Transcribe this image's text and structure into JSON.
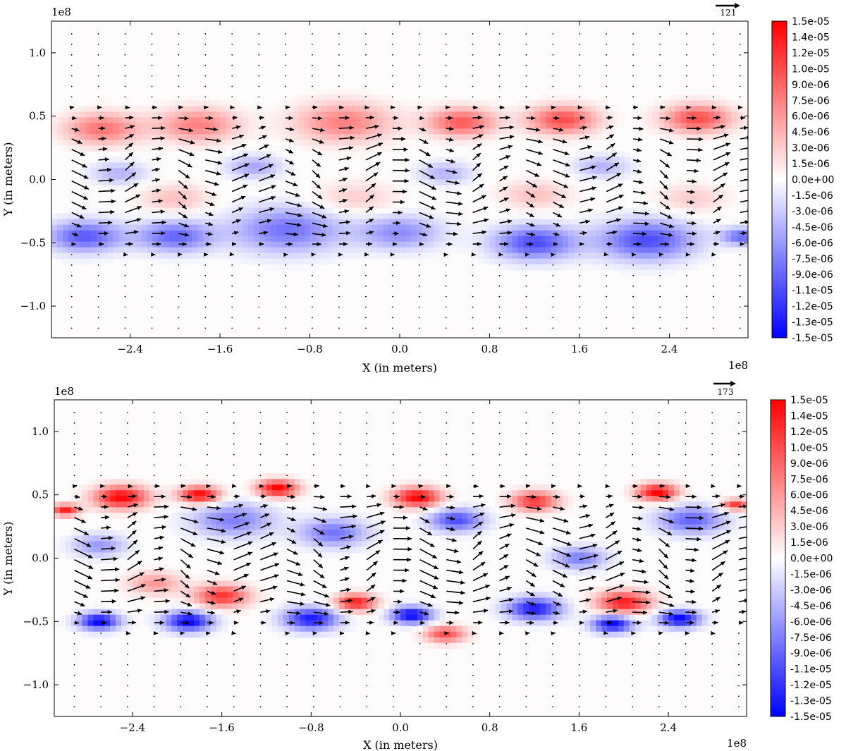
{
  "chart_data": [
    {
      "type": "heatmap",
      "title": "",
      "xlabel": "X (in meters)",
      "ylabel": "Y (in meters)",
      "x_offset_label": "1e8",
      "y_offset_label": "1e8",
      "xlim": [
        -3.1,
        3.1
      ],
      "ylim": [
        -1.25,
        1.25
      ],
      "xticks": [
        -2.4,
        -1.6,
        -0.8,
        0.0,
        0.8,
        1.6,
        2.4
      ],
      "xtick_labels": [
        "−2.4",
        "−1.6",
        "−0.8",
        "0.0",
        "0.8",
        "1.6",
        "2.4"
      ],
      "yticks": [
        1.0,
        0.5,
        0.0,
        -0.5,
        -1.0
      ],
      "ytick_labels": [
        "1.0",
        "0.5",
        "0.0",
        "−0.5",
        "−1.0"
      ],
      "quiver_key": "121",
      "colorbar": {
        "vmin": -1.5e-05,
        "vmax": 1.5e-05,
        "labels": [
          "1.5e-05",
          "1.4e-05",
          "1.2e-05",
          "1.0e-05",
          "9.0e-06",
          "7.5e-06",
          "6.0e-06",
          "4.5e-06",
          "3.0e-06",
          "1.5e-06",
          "0.0e+00",
          "-1.5e-06",
          "-3.0e-06",
          "-4.5e-06",
          "-6.0e-06",
          "-7.5e-06",
          "-9.0e-06",
          "-1.1e-05",
          "-1.2e-05",
          "-1.3e-05",
          "-1.5e-05"
        ]
      },
      "blobs": [
        {
          "x": -2.65,
          "y": 0.4,
          "s": 0.55,
          "v": 0.55
        },
        {
          "x": -1.8,
          "y": 0.43,
          "s": 0.6,
          "v": 0.5
        },
        {
          "x": -0.5,
          "y": 0.45,
          "s": 0.7,
          "v": 0.5
        },
        {
          "x": 0.55,
          "y": 0.45,
          "s": 0.5,
          "v": 0.65
        },
        {
          "x": 1.45,
          "y": 0.47,
          "s": 0.5,
          "v": 0.7
        },
        {
          "x": 2.65,
          "y": 0.48,
          "s": 0.5,
          "v": 0.7
        },
        {
          "x": -2.8,
          "y": -0.45,
          "s": 0.55,
          "v": -0.65
        },
        {
          "x": -2.0,
          "y": -0.45,
          "s": 0.55,
          "v": -0.6
        },
        {
          "x": -1.0,
          "y": -0.4,
          "s": 0.8,
          "v": -0.55
        },
        {
          "x": 0.0,
          "y": -0.42,
          "s": 0.6,
          "v": -0.45
        },
        {
          "x": 1.2,
          "y": -0.5,
          "s": 0.6,
          "v": -0.7
        },
        {
          "x": 2.2,
          "y": -0.48,
          "s": 0.7,
          "v": -0.7
        },
        {
          "x": 3.05,
          "y": -0.45,
          "s": 0.3,
          "v": -0.6
        },
        {
          "x": -2.5,
          "y": 0.05,
          "s": 0.4,
          "v": -0.3
        },
        {
          "x": -1.3,
          "y": 0.1,
          "s": 0.4,
          "v": -0.35
        },
        {
          "x": 0.4,
          "y": 0.05,
          "s": 0.4,
          "v": -0.3
        },
        {
          "x": 1.8,
          "y": 0.1,
          "s": 0.4,
          "v": -0.3
        },
        {
          "x": -2.0,
          "y": -0.15,
          "s": 0.5,
          "v": 0.25
        },
        {
          "x": -0.4,
          "y": -0.15,
          "s": 0.6,
          "v": 0.2
        },
        {
          "x": 1.2,
          "y": -0.12,
          "s": 0.5,
          "v": 0.25
        },
        {
          "x": 2.6,
          "y": -0.15,
          "s": 0.5,
          "v": 0.2
        }
      ]
    },
    {
      "type": "heatmap",
      "title": "",
      "xlabel": "X (in meters)",
      "ylabel": "Y (in meters)",
      "x_offset_label": "1e8",
      "y_offset_label": "1e8",
      "xlim": [
        -3.1,
        3.1
      ],
      "ylim": [
        -1.25,
        1.25
      ],
      "xticks": [
        -2.4,
        -1.6,
        -0.8,
        0.0,
        0.8,
        1.6,
        2.4
      ],
      "xtick_labels": [
        "−2.4",
        "−1.6",
        "−0.8",
        "0.0",
        "0.8",
        "1.6",
        "2.4"
      ],
      "yticks": [
        1.0,
        0.5,
        0.0,
        -0.5,
        -1.0
      ],
      "ytick_labels": [
        "1.0",
        "0.5",
        "0.0",
        "−0.5",
        "−1.0"
      ],
      "quiver_key": "173",
      "colorbar": {
        "vmin": -1.5e-05,
        "vmax": 1.5e-05,
        "labels": [
          "1.5e-05",
          "1.4e-05",
          "1.2e-05",
          "1.0e-05",
          "9.0e-06",
          "7.5e-06",
          "6.0e-06",
          "4.5e-06",
          "3.0e-06",
          "1.5e-06",
          "0.0e+00",
          "-1.5e-06",
          "-3.0e-06",
          "-4.5e-06",
          "-6.0e-06",
          "-7.5e-06",
          "-9.0e-06",
          "-1.1e-05",
          "-1.2e-05",
          "-1.3e-05",
          "-1.5e-05"
        ]
      },
      "blobs": [
        {
          "x": -2.5,
          "y": 0.48,
          "s": 0.4,
          "v": 1.0
        },
        {
          "x": -1.8,
          "y": 0.5,
          "s": 0.3,
          "v": 1.0
        },
        {
          "x": -1.1,
          "y": 0.55,
          "s": 0.3,
          "v": 1.0
        },
        {
          "x": 0.15,
          "y": 0.48,
          "s": 0.35,
          "v": 1.0
        },
        {
          "x": 1.2,
          "y": 0.45,
          "s": 0.35,
          "v": 0.8
        },
        {
          "x": 2.3,
          "y": 0.52,
          "s": 0.3,
          "v": 1.0
        },
        {
          "x": -3.0,
          "y": 0.38,
          "s": 0.2,
          "v": 0.9
        },
        {
          "x": 3.0,
          "y": 0.42,
          "s": 0.2,
          "v": 0.8
        },
        {
          "x": -2.7,
          "y": -0.5,
          "s": 0.3,
          "v": -1.0
        },
        {
          "x": -1.9,
          "y": -0.5,
          "s": 0.35,
          "v": -1.0
        },
        {
          "x": -0.8,
          "y": -0.48,
          "s": 0.4,
          "v": -0.9
        },
        {
          "x": 0.1,
          "y": -0.45,
          "s": 0.3,
          "v": -1.0
        },
        {
          "x": 1.2,
          "y": -0.4,
          "s": 0.4,
          "v": -0.9
        },
        {
          "x": 1.9,
          "y": -0.52,
          "s": 0.3,
          "v": -1.0
        },
        {
          "x": 2.5,
          "y": -0.48,
          "s": 0.3,
          "v": -1.0
        },
        {
          "x": -1.5,
          "y": 0.3,
          "s": 0.6,
          "v": -0.5
        },
        {
          "x": -0.6,
          "y": 0.2,
          "s": 0.5,
          "v": -0.55
        },
        {
          "x": 0.5,
          "y": 0.3,
          "s": 0.4,
          "v": -0.7
        },
        {
          "x": 2.6,
          "y": 0.3,
          "s": 0.5,
          "v": -0.6
        },
        {
          "x": -1.6,
          "y": -0.3,
          "s": 0.4,
          "v": 0.8
        },
        {
          "x": -0.4,
          "y": -0.35,
          "s": 0.3,
          "v": 0.9
        },
        {
          "x": 2.0,
          "y": -0.35,
          "s": 0.4,
          "v": 0.9
        },
        {
          "x": 0.4,
          "y": -0.6,
          "s": 0.3,
          "v": 0.7
        },
        {
          "x": -2.2,
          "y": -0.2,
          "s": 0.4,
          "v": 0.4
        },
        {
          "x": -2.7,
          "y": 0.1,
          "s": 0.4,
          "v": -0.4
        },
        {
          "x": 1.6,
          "y": 0.0,
          "s": 0.4,
          "v": -0.5
        }
      ]
    }
  ]
}
